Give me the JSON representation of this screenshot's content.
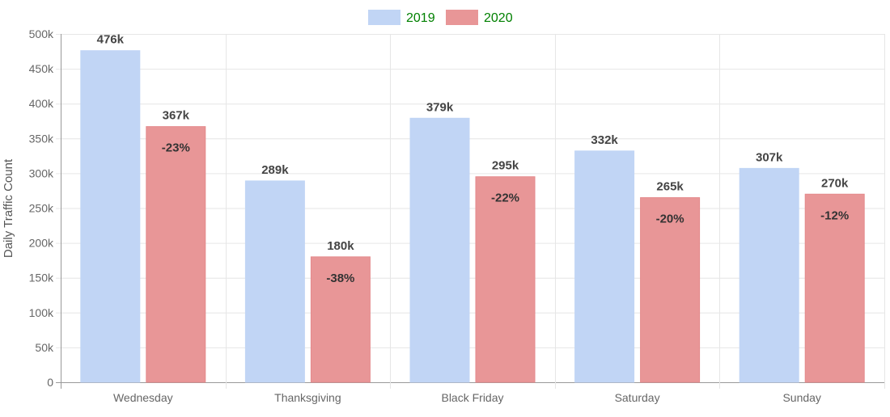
{
  "chart_data": {
    "type": "bar",
    "categories": [
      "Wednesday",
      "Thanksgiving",
      "Black Friday",
      "Saturday",
      "Sunday"
    ],
    "series": [
      {
        "name": "2019",
        "values": [
          476000,
          289000,
          379000,
          332000,
          307000
        ],
        "value_labels": [
          "476k",
          "289k",
          "379k",
          "332k",
          "307k"
        ]
      },
      {
        "name": "2020",
        "values": [
          367000,
          180000,
          295000,
          265000,
          270000
        ],
        "value_labels": [
          "367k",
          "180k",
          "295k",
          "265k",
          "270k"
        ],
        "change_labels": [
          "-23%",
          "-38%",
          "-22%",
          "-20%",
          "-12%"
        ]
      }
    ],
    "ylabel": "Daily Traffic Count",
    "xlabel": "",
    "ylim": [
      0,
      500000
    ],
    "yticks": [
      {
        "value": 0,
        "label": "0"
      },
      {
        "value": 50000,
        "label": "50k"
      },
      {
        "value": 100000,
        "label": "100k"
      },
      {
        "value": 150000,
        "label": "150k"
      },
      {
        "value": 200000,
        "label": "200k"
      },
      {
        "value": 250000,
        "label": "250k"
      },
      {
        "value": 300000,
        "label": "300k"
      },
      {
        "value": 350000,
        "label": "350k"
      },
      {
        "value": 400000,
        "label": "400k"
      },
      {
        "value": 450000,
        "label": "450k"
      },
      {
        "value": 500000,
        "label": "500k"
      }
    ],
    "grid": true,
    "legend_position": "top-center",
    "colors": {
      "series_2019_fill": "#c1d5f5",
      "series_2020_fill": "#e89697",
      "series_2020_stroke": "#e48a8c",
      "legend_text": "#008000",
      "grid": "#e6e6e6"
    }
  }
}
